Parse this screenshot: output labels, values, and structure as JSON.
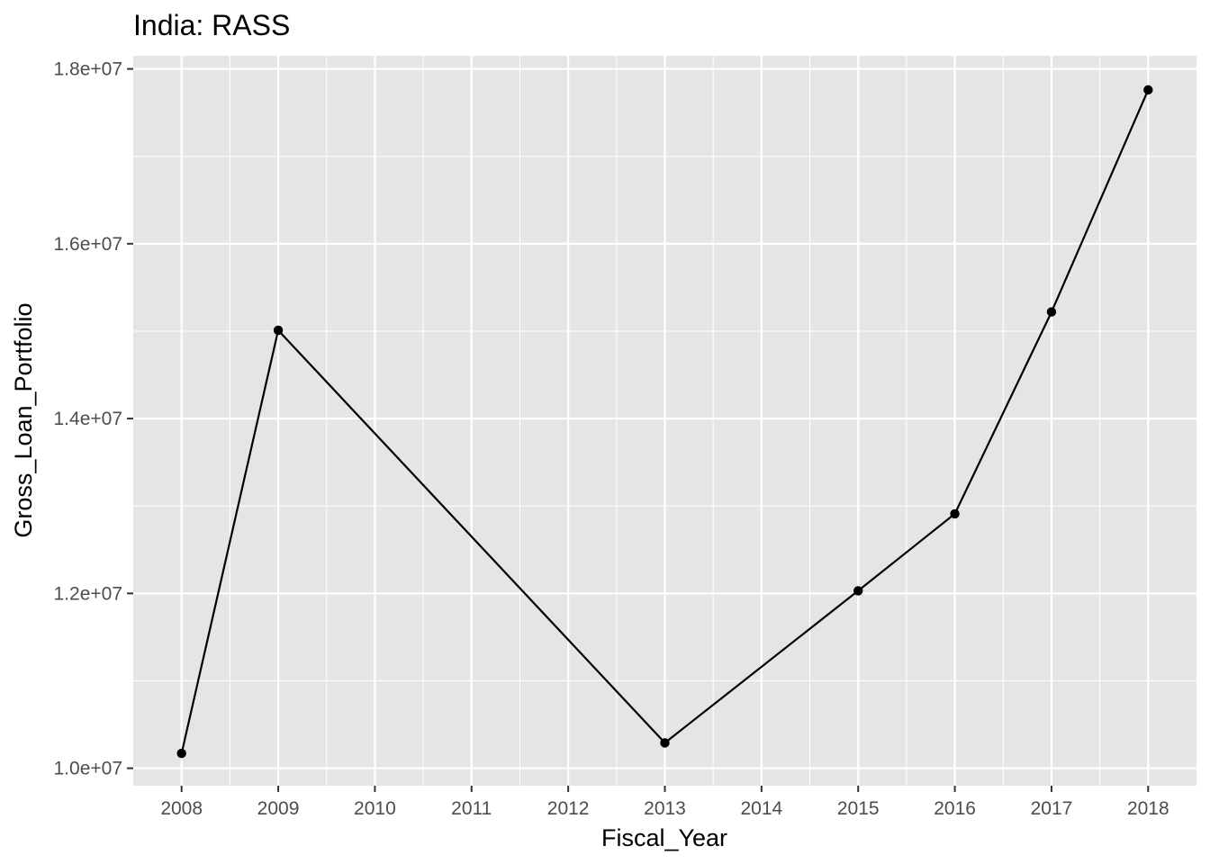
{
  "chart_data": {
    "type": "line",
    "title": "India:  RASS",
    "xlabel": "Fiscal_Year",
    "ylabel": "Gross_Loan_Portfolio",
    "x_ticks": [
      "2008",
      "2009",
      "2010",
      "2011",
      "2012",
      "2013",
      "2014",
      "2015",
      "2016",
      "2017",
      "2018"
    ],
    "y_ticks": [
      "1.0e+07",
      "1.2e+07",
      "1.4e+07",
      "1.6e+07",
      "1.8e+07"
    ],
    "y_tick_values": [
      10000000,
      12000000,
      14000000,
      16000000,
      18000000
    ],
    "xlim": [
      2007.5,
      2018.5
    ],
    "ylim": [
      9800000,
      18150000
    ],
    "grid": true,
    "series": [
      {
        "x": [
          2008,
          2009,
          2013,
          2015,
          2016,
          2017,
          2018
        ],
        "y": [
          10170000,
          15010000,
          10290000,
          12030000,
          12910000,
          15220000,
          17760000
        ]
      }
    ],
    "colors": {
      "panel_background": "#e5e5e5",
      "grid": "#ffffff",
      "line": "#000000",
      "point": "#000000",
      "tick_label": "#4d4d4d",
      "tick_mark": "#333333"
    }
  }
}
